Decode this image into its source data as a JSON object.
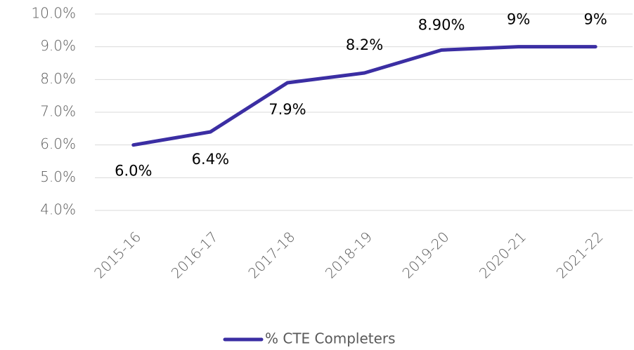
{
  "chart_data": {
    "type": "line",
    "categories": [
      "2015-16",
      "2016-17",
      "2017-18",
      "2018-19",
      "2019-20",
      "2020-21",
      "2021-22"
    ],
    "series": [
      {
        "name": "% CTE Completers",
        "color": "#3b2ea3",
        "values": [
          6.0,
          6.4,
          7.9,
          8.2,
          8.9,
          9,
          9
        ],
        "value_labels": [
          "6.0%",
          "6.4%",
          "7.9%",
          "8.2%",
          "8.90%",
          "9%",
          "9%"
        ]
      }
    ],
    "ylim": [
      4,
      10
    ],
    "yticks": [
      {
        "value": 4,
        "label": "4.0%"
      },
      {
        "value": 5,
        "label": "5.0%"
      },
      {
        "value": 6,
        "label": "6.0%"
      },
      {
        "value": 7,
        "label": "7.0%"
      },
      {
        "value": 8,
        "label": "8.0%"
      },
      {
        "value": 9,
        "label": "9.0%"
      },
      {
        "value": 10,
        "label": "10.0%"
      }
    ],
    "grid": true,
    "legend": "bottom"
  }
}
